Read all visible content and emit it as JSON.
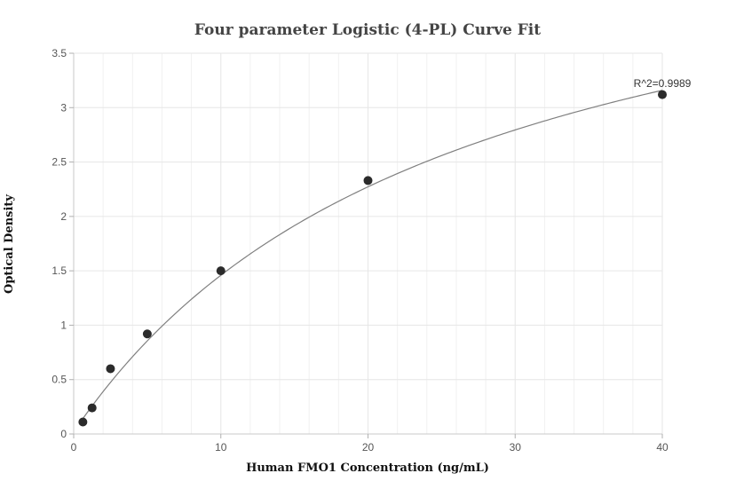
{
  "chart_data": {
    "type": "scatter",
    "title": "Four parameter Logistic (4-PL) Curve Fit",
    "xlabel": "Human FMO1 Concentration (ng/mL)",
    "ylabel": "Optical Density",
    "xlim": [
      0,
      40
    ],
    "ylim": [
      0,
      3.5
    ],
    "x_ticks": [
      0,
      10,
      20,
      30,
      40
    ],
    "y_ticks": [
      0,
      0.5,
      1,
      1.5,
      2,
      2.5,
      3,
      3.5
    ],
    "grid": true,
    "points": {
      "x": [
        0.625,
        1.25,
        2.5,
        5,
        10,
        20,
        40
      ],
      "y": [
        0.11,
        0.24,
        0.6,
        0.92,
        1.5,
        2.33,
        3.12
      ]
    },
    "fit": {
      "model": "4PL",
      "A": 0.02,
      "B": 1.0,
      "C": 26.0,
      "D": 5.2
    },
    "annotation": "R^2=0.9989"
  },
  "colors": {
    "points": "#2b2b2b",
    "curve": "#7f7f7f",
    "grid": "#e6e6e6"
  }
}
